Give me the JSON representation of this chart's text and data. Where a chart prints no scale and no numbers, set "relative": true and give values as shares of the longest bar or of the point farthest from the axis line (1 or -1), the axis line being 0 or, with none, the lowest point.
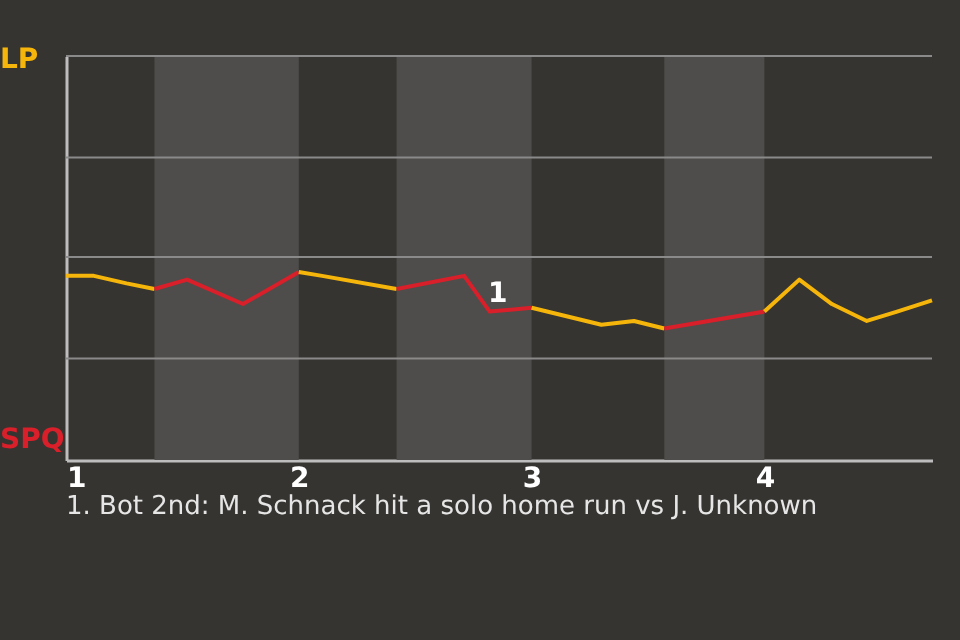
{
  "chart_data": {
    "type": "line",
    "relative": true,
    "series": [
      {
        "color": "#f5b50a",
        "x": [
          1,
          1.12,
          1.26,
          1.38
        ],
        "values": [
          0.98,
          0.98,
          0.94,
          0.91
        ]
      },
      {
        "color": "#d81f2a",
        "x": [
          1.38,
          1.52,
          1.76,
          2.0
        ],
        "values": [
          0.91,
          0.96,
          0.83,
          1
        ]
      },
      {
        "color": "#f5b50a",
        "x": [
          2.0,
          2.1,
          2.42
        ],
        "values": [
          1,
          0.98,
          0.91
        ]
      },
      {
        "color": "#d81f2a",
        "x": [
          2.42,
          2.71,
          2.82,
          3.0
        ],
        "values": [
          0.91,
          0.98,
          0.79,
          0.81
        ]
      },
      {
        "color": "#f5b50a",
        "x": [
          3.0,
          3.3,
          3.44,
          3.57
        ],
        "values": [
          0.81,
          0.72,
          0.74,
          0.7
        ]
      },
      {
        "color": "#d81f2a",
        "x": [
          3.57,
          4.0
        ],
        "values": [
          0.7,
          0.79
        ]
      },
      {
        "color": "#f5b50a",
        "x": [
          4.0,
          4.15,
          4.29,
          4.44,
          4.57,
          4.72
        ],
        "values": [
          0.79,
          0.96,
          0.83,
          0.74,
          0.79,
          0.85
        ]
      }
    ],
    "xlim": [
      1,
      4.72
    ],
    "xticks": [
      1,
      2,
      3,
      4
    ],
    "bands": [
      {
        "axis": "x",
        "from": 1.38,
        "to": 2.0,
        "color": "#4e4d4b"
      },
      {
        "axis": "x",
        "from": 2.42,
        "to": 3.0,
        "color": "#4e4d4b"
      },
      {
        "axis": "x",
        "from": 3.57,
        "to": 4.0,
        "color": "#4e4d4b"
      }
    ],
    "annotations": [
      "LP",
      "SPQ",
      {
        "text": "1",
        "x": 2.82,
        "y": 0.79
      },
      "1. Bot 2nd: M. Schnack hit a solo home run vs J. Unknown"
    ],
    "ref_lines": [
      {
        "axis": "y",
        "value": 0.54
      },
      {
        "axis": "y",
        "value": 1.08
      },
      {
        "axis": "y",
        "value": 1.61
      },
      {
        "axis": "y",
        "value": 2.15
      }
    ],
    "marker": "none"
  }
}
